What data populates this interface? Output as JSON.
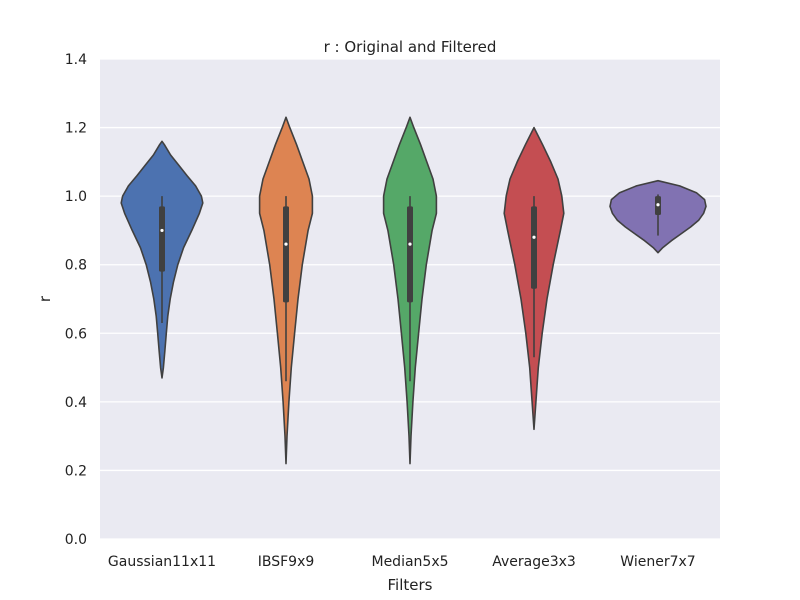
{
  "chart_data": {
    "type": "violin",
    "title": "r :  Original and Filtered",
    "xlabel": "Filters",
    "ylabel": "r",
    "ylim": [
      0.0,
      1.4
    ],
    "yticks": [
      "0.0",
      "0.2",
      "0.4",
      "0.6",
      "0.8",
      "1.0",
      "1.2",
      "1.4"
    ],
    "grid": true,
    "colors": {
      "background": "#eaeaf2",
      "grid": "#ffffff",
      "outline": "#404040"
    },
    "categories": [
      "Gaussian11x11",
      "IBSF9x9",
      "Median5x5",
      "Average3x3",
      "Wiener7x7"
    ],
    "series": [
      {
        "category": "Gaussian11x11",
        "color": "#4c72b0",
        "min": 0.47,
        "max": 1.16,
        "q1": 0.78,
        "median": 0.9,
        "q3": 0.97,
        "whisker_low": 0.63,
        "whisker_high": 1.0,
        "density": [
          [
            0.47,
            0.0
          ],
          [
            0.5,
            0.03
          ],
          [
            0.55,
            0.06
          ],
          [
            0.6,
            0.09
          ],
          [
            0.65,
            0.12
          ],
          [
            0.7,
            0.17
          ],
          [
            0.75,
            0.24
          ],
          [
            0.8,
            0.33
          ],
          [
            0.85,
            0.45
          ],
          [
            0.9,
            0.62
          ],
          [
            0.95,
            0.78
          ],
          [
            0.98,
            0.85
          ],
          [
            1.0,
            0.82
          ],
          [
            1.03,
            0.7
          ],
          [
            1.06,
            0.52
          ],
          [
            1.09,
            0.35
          ],
          [
            1.12,
            0.18
          ],
          [
            1.15,
            0.05
          ],
          [
            1.16,
            0.0
          ]
        ]
      },
      {
        "category": "IBSF9x9",
        "color": "#dd8452",
        "min": 0.22,
        "max": 1.23,
        "q1": 0.69,
        "median": 0.86,
        "q3": 0.97,
        "whisker_low": 0.46,
        "whisker_high": 1.0,
        "density": [
          [
            0.22,
            0.0
          ],
          [
            0.3,
            0.02
          ],
          [
            0.4,
            0.06
          ],
          [
            0.5,
            0.11
          ],
          [
            0.6,
            0.18
          ],
          [
            0.7,
            0.25
          ],
          [
            0.8,
            0.34
          ],
          [
            0.9,
            0.46
          ],
          [
            0.95,
            0.55
          ],
          [
            1.0,
            0.55
          ],
          [
            1.05,
            0.48
          ],
          [
            1.1,
            0.35
          ],
          [
            1.15,
            0.22
          ],
          [
            1.2,
            0.08
          ],
          [
            1.23,
            0.0
          ]
        ]
      },
      {
        "category": "Median5x5",
        "color": "#55a868",
        "min": 0.22,
        "max": 1.23,
        "q1": 0.69,
        "median": 0.86,
        "q3": 0.97,
        "whisker_low": 0.46,
        "whisker_high": 1.0,
        "density": [
          [
            0.22,
            0.0
          ],
          [
            0.3,
            0.02
          ],
          [
            0.4,
            0.06
          ],
          [
            0.5,
            0.11
          ],
          [
            0.6,
            0.18
          ],
          [
            0.7,
            0.25
          ],
          [
            0.8,
            0.34
          ],
          [
            0.9,
            0.46
          ],
          [
            0.95,
            0.55
          ],
          [
            1.0,
            0.55
          ],
          [
            1.05,
            0.48
          ],
          [
            1.1,
            0.35
          ],
          [
            1.15,
            0.22
          ],
          [
            1.2,
            0.08
          ],
          [
            1.23,
            0.0
          ]
        ]
      },
      {
        "category": "Average3x3",
        "color": "#c44e52",
        "min": 0.32,
        "max": 1.2,
        "q1": 0.73,
        "median": 0.88,
        "q3": 0.97,
        "whisker_low": 0.53,
        "whisker_high": 1.0,
        "density": [
          [
            0.32,
            0.0
          ],
          [
            0.4,
            0.04
          ],
          [
            0.5,
            0.09
          ],
          [
            0.6,
            0.17
          ],
          [
            0.7,
            0.27
          ],
          [
            0.8,
            0.4
          ],
          [
            0.9,
            0.55
          ],
          [
            0.95,
            0.62
          ],
          [
            1.0,
            0.58
          ],
          [
            1.05,
            0.5
          ],
          [
            1.1,
            0.35
          ],
          [
            1.15,
            0.18
          ],
          [
            1.2,
            0.0
          ]
        ]
      },
      {
        "category": "Wiener7x7",
        "color": "#8172b2",
        "min": 0.835,
        "max": 1.045,
        "q1": 0.945,
        "median": 0.975,
        "q3": 1.0,
        "whisker_low": 0.885,
        "whisker_high": 1.005,
        "density": [
          [
            0.835,
            0.0
          ],
          [
            0.85,
            0.1
          ],
          [
            0.87,
            0.28
          ],
          [
            0.89,
            0.48
          ],
          [
            0.91,
            0.68
          ],
          [
            0.93,
            0.85
          ],
          [
            0.95,
            0.95
          ],
          [
            0.97,
            1.0
          ],
          [
            0.99,
            0.97
          ],
          [
            1.01,
            0.8
          ],
          [
            1.03,
            0.45
          ],
          [
            1.045,
            0.0
          ]
        ]
      }
    ]
  }
}
